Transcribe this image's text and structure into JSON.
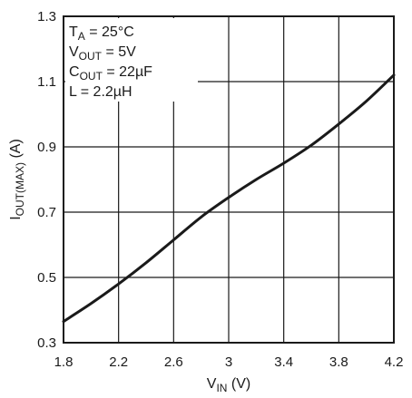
{
  "chart_data": {
    "type": "line",
    "xlabel": {
      "main": "V",
      "sub": "IN",
      "unit": " (V)"
    },
    "ylabel": {
      "main": "I",
      "sub": "OUT(MAX)",
      "unit": " (A)"
    },
    "xlim": [
      1.8,
      4.2
    ],
    "ylim": [
      0.3,
      1.3
    ],
    "xticks": [
      "1.8",
      "2.2",
      "2.6",
      "3",
      "3.4",
      "3.8",
      "4.2"
    ],
    "yticks": [
      "0.3",
      "0.5",
      "0.7",
      "0.9",
      "1.1",
      "1.3"
    ],
    "grid": true,
    "annotations": [
      {
        "main": "T",
        "sub": "A",
        "rest": " = 25°C"
      },
      {
        "main": "V",
        "sub": "OUT",
        "rest": " = 5V"
      },
      {
        "main": "C",
        "sub": "OUT",
        "rest": " = 22µF"
      },
      {
        "main": "L",
        "sub": "",
        "rest": " = 2.2µH"
      }
    ],
    "series": [
      {
        "x": [
          1.8,
          2.0,
          2.2,
          2.4,
          2.6,
          2.8,
          3.0,
          3.2,
          3.4,
          3.6,
          3.8,
          4.0,
          4.2
        ],
        "y": [
          0.365,
          0.42,
          0.48,
          0.545,
          0.615,
          0.685,
          0.745,
          0.8,
          0.85,
          0.905,
          0.97,
          1.04,
          1.12
        ]
      }
    ],
    "line_color": "#1a1a1a"
  }
}
